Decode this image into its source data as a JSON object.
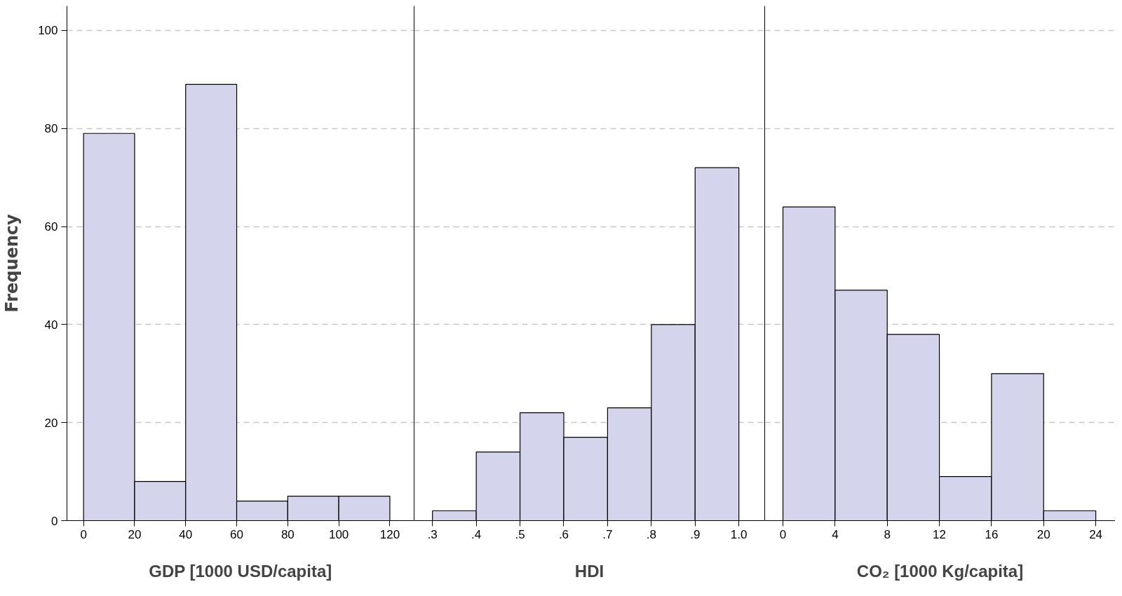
{
  "chart_data": [
    {
      "type": "histogram",
      "xlabel": "GDP [1000 USD/capita]",
      "ylabel": "Frequency",
      "bins": [
        0,
        20,
        40,
        60,
        80,
        100,
        120
      ],
      "values": [
        79,
        8,
        89,
        4,
        5,
        5
      ],
      "color": "#d4d4ec",
      "xlim": [
        -6.5,
        129.5
      ],
      "xticks": [
        0,
        20,
        40,
        60,
        80,
        100,
        120
      ],
      "ylim": [
        0,
        105
      ],
      "yticks": [
        0,
        20,
        40,
        60,
        80,
        100
      ],
      "grid": "y"
    },
    {
      "type": "histogram",
      "xlabel": "HDI",
      "bins": [
        0.3,
        0.4,
        0.5,
        0.6,
        0.7,
        0.8,
        0.9,
        1.0
      ],
      "values": [
        2,
        14,
        22,
        17,
        23,
        40,
        72
      ],
      "color": "#d4d4ec",
      "xlim": [
        0.258,
        1.059
      ],
      "xticks": [
        {
          "value": 0.3,
          "label": ".3"
        },
        {
          "value": 0.4,
          "label": ".4"
        },
        {
          "value": 0.5,
          "label": ".5"
        },
        {
          "value": 0.6,
          "label": ".6"
        },
        {
          "value": 0.7,
          "label": ".7"
        },
        {
          "value": 0.8,
          "label": ".8"
        },
        {
          "value": 0.9,
          "label": ".9"
        },
        {
          "value": 1.0,
          "label": "1.0"
        }
      ],
      "ylim": [
        0,
        105
      ],
      "yticks": [
        0,
        20,
        40,
        60,
        80,
        100
      ],
      "grid": "y",
      "tick_labels": "x"
    },
    {
      "type": "histogram",
      "xlabel": "CO₂ [1000 Kg/capita]",
      "bins": [
        0,
        4,
        8,
        12,
        16,
        20,
        24
      ],
      "values": [
        64,
        47,
        38,
        9,
        30,
        2
      ],
      "color": "#d4d4ec",
      "xlim": [
        -1.4,
        25.5
      ],
      "xticks": [
        0,
        4,
        8,
        12,
        16,
        20,
        24
      ],
      "ylim": [
        0,
        105
      ],
      "yticks": [
        0,
        20,
        40,
        60,
        80,
        100
      ],
      "grid": "y",
      "tick_labels": "x"
    }
  ]
}
